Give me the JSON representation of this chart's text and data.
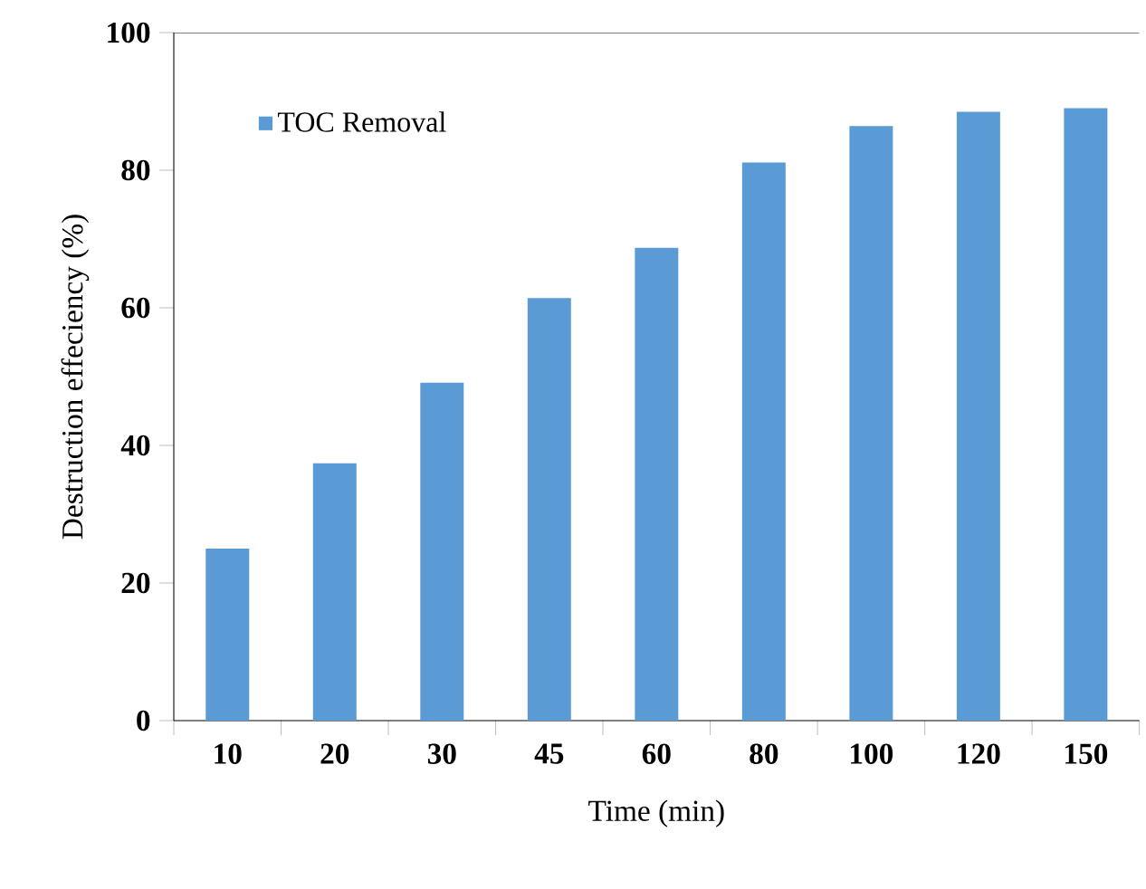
{
  "chart_data": {
    "type": "bar",
    "xlabel": "Time  (min)",
    "ylabel": "Destruction effeciency (%)",
    "categories": [
      "10",
      "20",
      "30",
      "45",
      "60",
      "80",
      "100",
      "120",
      "150"
    ],
    "series": [
      {
        "name": "TOC Removal",
        "color": "#5b9bd5",
        "values": [
          25.0,
          37.4,
          49.1,
          61.4,
          68.7,
          81.1,
          86.4,
          88.5,
          89.0
        ]
      }
    ],
    "ylim": [
      0,
      100
    ],
    "yticks": [
      0,
      20,
      40,
      60,
      80,
      100
    ],
    "grid": false,
    "legend": "top left"
  }
}
